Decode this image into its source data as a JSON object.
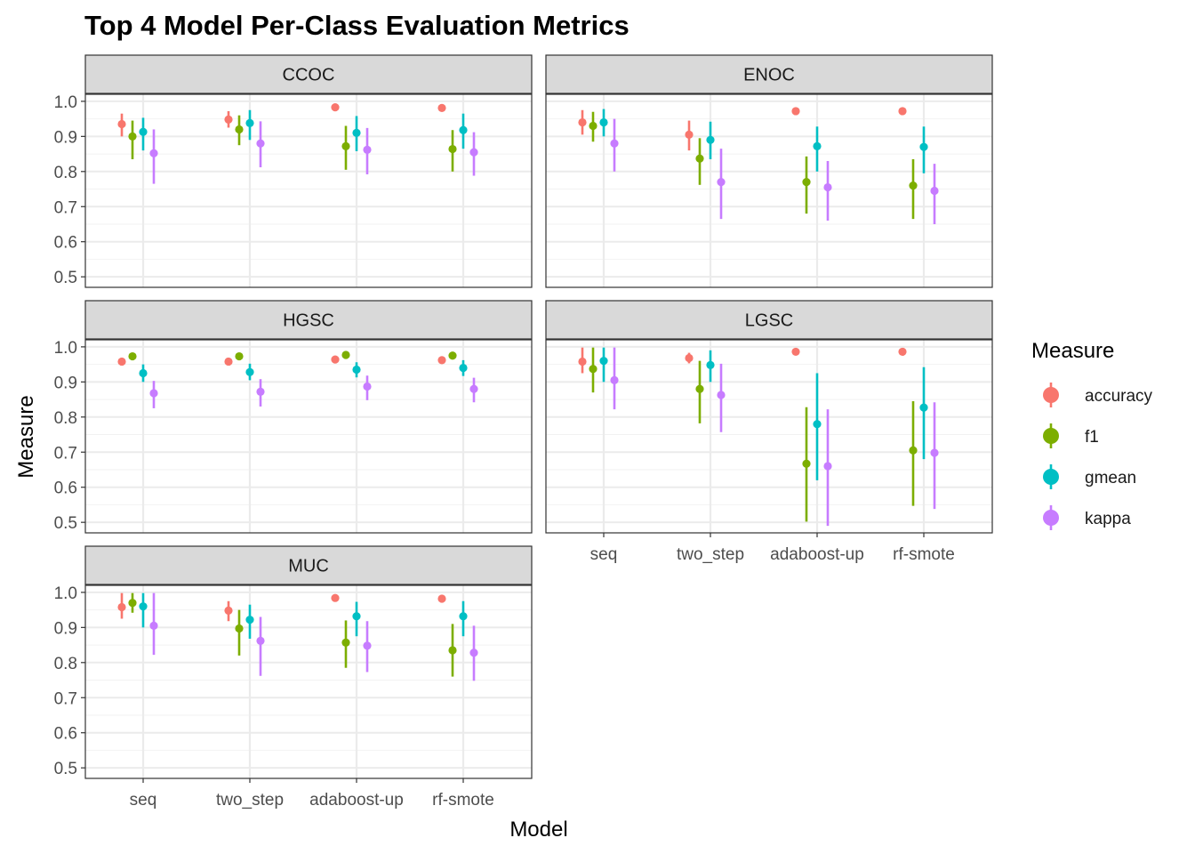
{
  "chart_data": {
    "type": "scatter",
    "title": "Top 4 Model Per-Class Evaluation Metrics",
    "xlabel": "Model",
    "ylabel": "Measure",
    "categories": [
      "seq",
      "two_step",
      "adaboost-up",
      "rf-smote"
    ],
    "ylim": [
      0.47,
      1.02
    ],
    "yticks": [
      0.5,
      0.6,
      0.7,
      0.8,
      0.9,
      1.0
    ],
    "ytick_labels": [
      "0.5",
      "0.6",
      "0.7",
      "0.8",
      "0.9",
      "1.0"
    ],
    "grid": true,
    "legend": {
      "title": "Measure",
      "position": "right",
      "entries": [
        {
          "name": "accuracy",
          "color": "#F8766D"
        },
        {
          "name": "f1",
          "color": "#7CAE00"
        },
        {
          "name": "gmean",
          "color": "#00BFC4"
        },
        {
          "name": "kappa",
          "color": "#C77CFF"
        }
      ]
    },
    "panels": [
      {
        "name": "CCOC",
        "series": [
          {
            "name": "accuracy",
            "values": [
              0.935,
              0.948,
              0.983,
              0.981
            ],
            "lower": [
              0.9,
              0.925,
              0.98,
              0.979
            ],
            "upper": [
              0.965,
              0.972,
              0.986,
              0.984
            ]
          },
          {
            "name": "f1",
            "values": [
              0.9,
              0.92,
              0.872,
              0.864
            ],
            "lower": [
              0.835,
              0.875,
              0.805,
              0.8
            ],
            "upper": [
              0.945,
              0.96,
              0.93,
              0.918
            ]
          },
          {
            "name": "gmean",
            "values": [
              0.913,
              0.938,
              0.91,
              0.918
            ],
            "lower": [
              0.86,
              0.89,
              0.858,
              0.865
            ],
            "upper": [
              0.953,
              0.975,
              0.958,
              0.965
            ]
          },
          {
            "name": "kappa",
            "values": [
              0.852,
              0.88,
              0.862,
              0.855
            ],
            "lower": [
              0.765,
              0.812,
              0.792,
              0.788
            ],
            "upper": [
              0.92,
              0.943,
              0.924,
              0.912
            ]
          }
        ]
      },
      {
        "name": "ENOC",
        "series": [
          {
            "name": "accuracy",
            "values": [
              0.94,
              0.905,
              0.972,
              0.972
            ],
            "lower": [
              0.905,
              0.86,
              0.969,
              0.969
            ],
            "upper": [
              0.975,
              0.945,
              0.975,
              0.975
            ]
          },
          {
            "name": "f1",
            "values": [
              0.93,
              0.837,
              0.77,
              0.76
            ],
            "lower": [
              0.885,
              0.762,
              0.68,
              0.665
            ],
            "upper": [
              0.97,
              0.895,
              0.843,
              0.835
            ]
          },
          {
            "name": "gmean",
            "values": [
              0.94,
              0.89,
              0.872,
              0.87
            ],
            "lower": [
              0.9,
              0.835,
              0.8,
              0.795
            ],
            "upper": [
              0.978,
              0.942,
              0.928,
              0.928
            ]
          },
          {
            "name": "kappa",
            "values": [
              0.88,
              0.77,
              0.755,
              0.745
            ],
            "lower": [
              0.8,
              0.665,
              0.66,
              0.65
            ],
            "upper": [
              0.95,
              0.865,
              0.83,
              0.822
            ]
          }
        ]
      },
      {
        "name": "HGSC",
        "series": [
          {
            "name": "accuracy",
            "values": [
              0.958,
              0.958,
              0.964,
              0.962
            ],
            "lower": [
              0.955,
              0.955,
              0.961,
              0.959
            ],
            "upper": [
              0.961,
              0.961,
              0.967,
              0.965
            ]
          },
          {
            "name": "f1",
            "values": [
              0.973,
              0.973,
              0.977,
              0.975
            ],
            "lower": [
              0.97,
              0.97,
              0.974,
              0.972
            ],
            "upper": [
              0.976,
              0.976,
              0.98,
              0.978
            ]
          },
          {
            "name": "gmean",
            "values": [
              0.925,
              0.928,
              0.935,
              0.94
            ],
            "lower": [
              0.9,
              0.905,
              0.913,
              0.917
            ],
            "upper": [
              0.95,
              0.952,
              0.956,
              0.962
            ]
          },
          {
            "name": "kappa",
            "values": [
              0.868,
              0.872,
              0.887,
              0.88
            ],
            "lower": [
              0.825,
              0.83,
              0.848,
              0.842
            ],
            "upper": [
              0.903,
              0.908,
              0.918,
              0.912
            ]
          }
        ]
      },
      {
        "name": "LGSC",
        "series": [
          {
            "name": "accuracy",
            "values": [
              0.958,
              0.968,
              0.986,
              0.986
            ],
            "lower": [
              0.925,
              0.953,
              0.983,
              0.983
            ],
            "upper": [
              0.998,
              0.983,
              0.989,
              0.989
            ]
          },
          {
            "name": "f1",
            "values": [
              0.937,
              0.88,
              0.667,
              0.705
            ],
            "lower": [
              0.87,
              0.782,
              0.502,
              0.547
            ],
            "upper": [
              0.998,
              0.96,
              0.828,
              0.845
            ]
          },
          {
            "name": "gmean",
            "values": [
              0.96,
              0.948,
              0.78,
              0.827
            ],
            "lower": [
              0.9,
              0.9,
              0.62,
              0.68
            ],
            "upper": [
              0.998,
              0.99,
              0.925,
              0.942
            ]
          },
          {
            "name": "kappa",
            "values": [
              0.905,
              0.863,
              0.66,
              0.698
            ],
            "lower": [
              0.822,
              0.757,
              0.49,
              0.538
            ],
            "upper": [
              0.998,
              0.952,
              0.822,
              0.842
            ]
          }
        ]
      },
      {
        "name": "MUC",
        "series": [
          {
            "name": "accuracy",
            "values": [
              0.958,
              0.948,
              0.984,
              0.982
            ],
            "lower": [
              0.925,
              0.918,
              0.981,
              0.979
            ],
            "upper": [
              0.998,
              0.975,
              0.987,
              0.985
            ]
          },
          {
            "name": "f1",
            "values": [
              0.97,
              0.897,
              0.857,
              0.835
            ],
            "lower": [
              0.942,
              0.82,
              0.785,
              0.76
            ],
            "upper": [
              0.998,
              0.95,
              0.92,
              0.91
            ]
          },
          {
            "name": "gmean",
            "values": [
              0.96,
              0.922,
              0.932,
              0.932
            ],
            "lower": [
              0.9,
              0.868,
              0.875,
              0.875
            ],
            "upper": [
              0.998,
              0.965,
              0.973,
              0.975
            ]
          },
          {
            "name": "kappa",
            "values": [
              0.905,
              0.862,
              0.848,
              0.828
            ],
            "lower": [
              0.822,
              0.762,
              0.773,
              0.748
            ],
            "upper": [
              0.998,
              0.93,
              0.918,
              0.905
            ]
          }
        ]
      }
    ]
  }
}
